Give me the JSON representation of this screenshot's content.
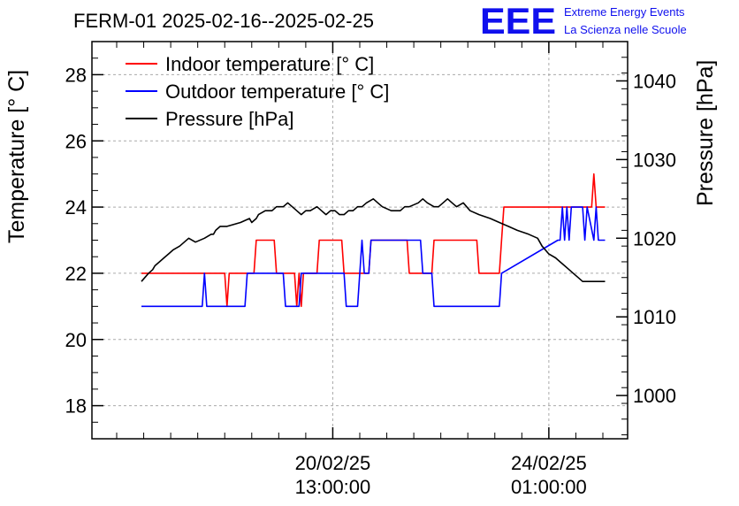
{
  "header": {
    "title": "FERM-01 2025-02-16--2025-02-25",
    "logo_mark": "EEE",
    "logo_line1": "Extreme Energy Events",
    "logo_line2": "La Scienza nelle Scuole"
  },
  "colors": {
    "indoor": "#ff0000",
    "outdoor": "#0000ff",
    "pressure": "#000000",
    "logo": "#1010ee",
    "grid": "#aaaaaa"
  },
  "chart_data": {
    "type": "line",
    "title": "FERM-01 2025-02-16--2025-02-25",
    "xaxis": {
      "unit": "hours since 2025-02-16 00:00",
      "range": [
        -22,
        216
      ],
      "tick_labels": [
        {
          "x": 85,
          "date": "20/02/25",
          "time": "13:00:00"
        },
        {
          "x": 181,
          "date": "24/02/25",
          "time": "01:00:00"
        }
      ]
    },
    "y_left": {
      "label": "Temperature [° C]",
      "ylim": [
        17,
        29
      ],
      "ticks": [
        18,
        20,
        22,
        24,
        26,
        28
      ]
    },
    "y_right": {
      "label": "Pressure [hPa]",
      "ylim": [
        994.5,
        1045
      ],
      "ticks": [
        1000,
        1010,
        1020,
        1030,
        1040
      ]
    },
    "grid": true,
    "legend_position": "top-left",
    "series": [
      {
        "name": "Indoor temperature [° C]",
        "axis": "left",
        "x": [
          0,
          37,
          38,
          39,
          50,
          51,
          59,
          60,
          68,
          69,
          70,
          71,
          72,
          78,
          79,
          89,
          90,
          101,
          102,
          118,
          119,
          129,
          130,
          149,
          150,
          159,
          160,
          161,
          162,
          200,
          201,
          202,
          203,
          206
        ],
        "y": [
          22,
          22,
          21,
          22,
          22,
          23,
          23,
          22,
          22,
          21,
          22,
          21,
          22,
          22,
          23,
          23,
          22,
          22,
          23,
          23,
          22,
          22,
          23,
          23,
          22,
          22,
          23,
          24,
          24,
          24,
          25,
          24,
          24,
          24
        ]
      },
      {
        "name": "Outdoor temperature [° C]",
        "axis": "left",
        "x": [
          0,
          27,
          28,
          29,
          46,
          47,
          63,
          64,
          70,
          71,
          90,
          91,
          96,
          97,
          98,
          99,
          101,
          102,
          124,
          125,
          129,
          130,
          159,
          160,
          185,
          186,
          187,
          188,
          189,
          190,
          191,
          192,
          193,
          196,
          197,
          198,
          201,
          202,
          203,
          206
        ],
        "y": [
          21,
          21,
          22,
          21,
          21,
          22,
          22,
          21,
          21,
          22,
          22,
          21,
          21,
          22,
          23,
          22,
          22,
          23,
          23,
          22,
          22,
          21,
          21,
          22,
          23,
          23,
          24,
          23,
          24,
          23,
          24,
          24,
          24,
          24,
          23,
          24,
          23,
          24,
          23,
          23
        ]
      },
      {
        "name": "Pressure [hPa]",
        "axis": "right",
        "x": [
          0,
          3,
          5,
          6,
          8,
          10,
          12,
          14,
          17,
          21,
          24,
          28,
          31,
          32,
          33,
          35,
          38,
          44,
          48,
          49,
          51,
          52,
          55,
          58,
          60,
          63,
          65,
          67,
          69,
          71,
          73,
          75,
          78,
          80,
          82,
          84,
          86,
          88,
          90,
          92,
          94,
          96,
          98,
          100,
          103,
          105,
          107,
          111,
          113,
          115,
          117,
          119,
          123,
          125,
          127,
          130,
          132,
          134,
          136,
          138,
          140,
          143,
          146,
          150,
          155,
          159,
          163,
          167,
          172,
          176,
          178,
          181,
          184,
          186,
          188,
          190,
          192,
          194,
          196,
          200,
          206
        ],
        "y": [
          1014.5,
          1015.5,
          1016,
          1016.5,
          1017,
          1017.5,
          1018,
          1018.5,
          1019,
          1020,
          1019.5,
          1020,
          1020.5,
          1020.5,
          1021,
          1021.5,
          1021.5,
          1022,
          1022.5,
          1022,
          1022.5,
          1023,
          1023.5,
          1023.5,
          1024,
          1024,
          1024.5,
          1024,
          1023.5,
          1023,
          1023.5,
          1023.5,
          1024,
          1023.5,
          1023,
          1023.5,
          1023.5,
          1023,
          1023,
          1023.5,
          1023.5,
          1024,
          1024,
          1024.5,
          1025,
          1024.5,
          1024,
          1023.5,
          1023.5,
          1023.5,
          1024,
          1024,
          1024.5,
          1025,
          1024.5,
          1024,
          1024,
          1024.5,
          1025,
          1024.5,
          1024,
          1024.5,
          1023.5,
          1023,
          1022.5,
          1022,
          1021.5,
          1021,
          1020.5,
          1020,
          1019,
          1018,
          1017.5,
          1017,
          1016.5,
          1016,
          1015.5,
          1015,
          1014.5,
          1014.5,
          1014.5
        ]
      }
    ]
  }
}
